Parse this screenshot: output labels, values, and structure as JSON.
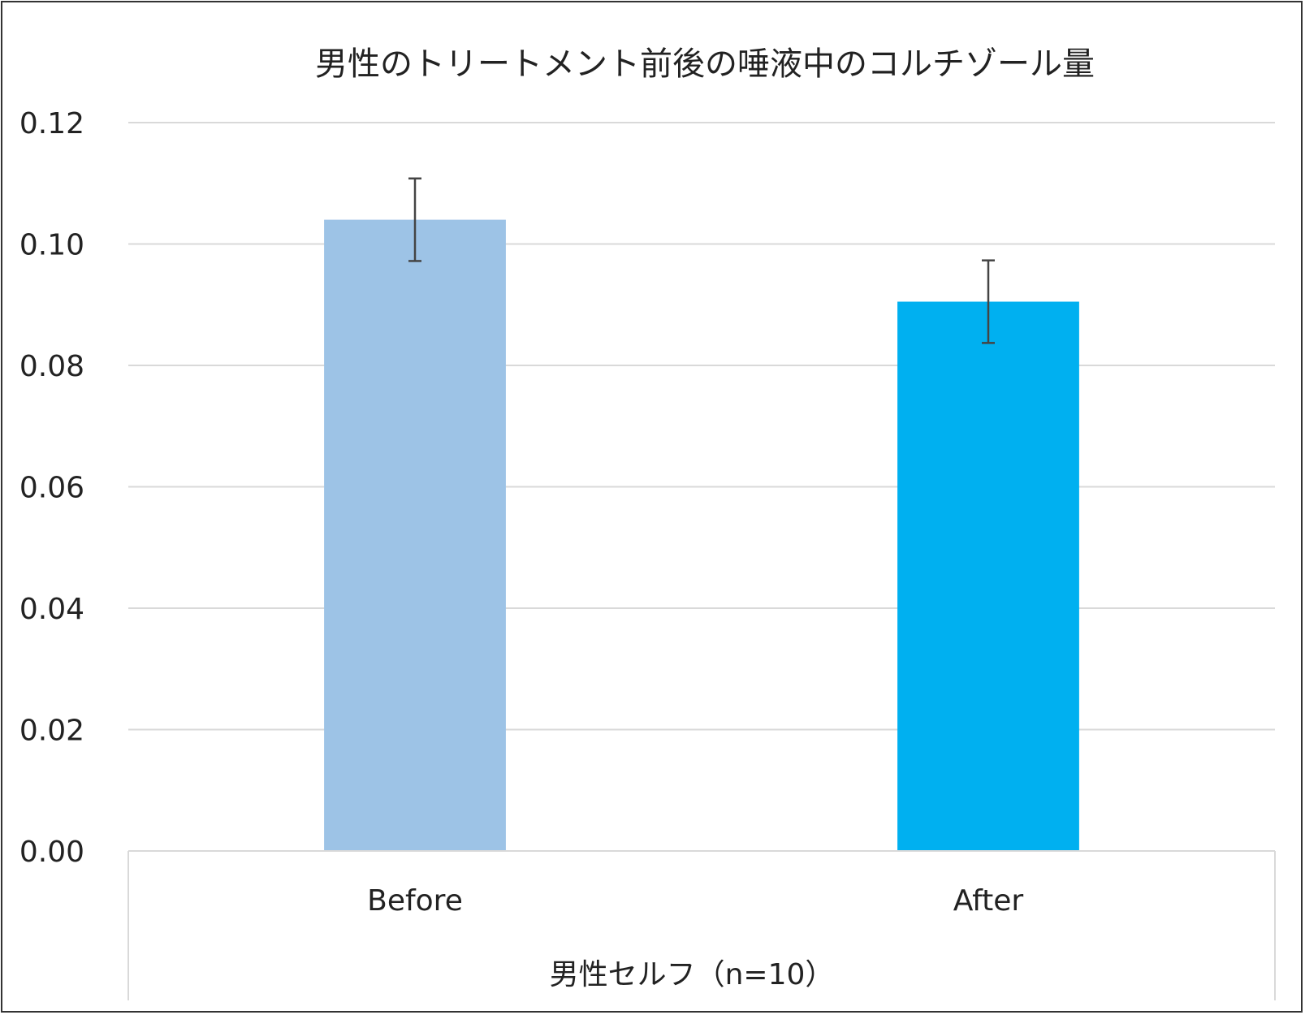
{
  "chart_data": {
    "type": "bar",
    "title": "男性のトリートメント前後の唾液中のコルチゾール量",
    "categories": [
      "Before",
      "After"
    ],
    "group_label": "男性セルフ（n=10）",
    "values": [
      0.104,
      0.0905
    ],
    "error": [
      0.0068,
      0.0068
    ],
    "colors": [
      "#9dc3e6",
      "#00b0f0"
    ],
    "ylim": [
      0,
      0.12
    ],
    "yticks": [
      "0.00",
      "0.02",
      "0.04",
      "0.06",
      "0.08",
      "0.10",
      "0.12"
    ],
    "grid": true,
    "legend": "none"
  }
}
